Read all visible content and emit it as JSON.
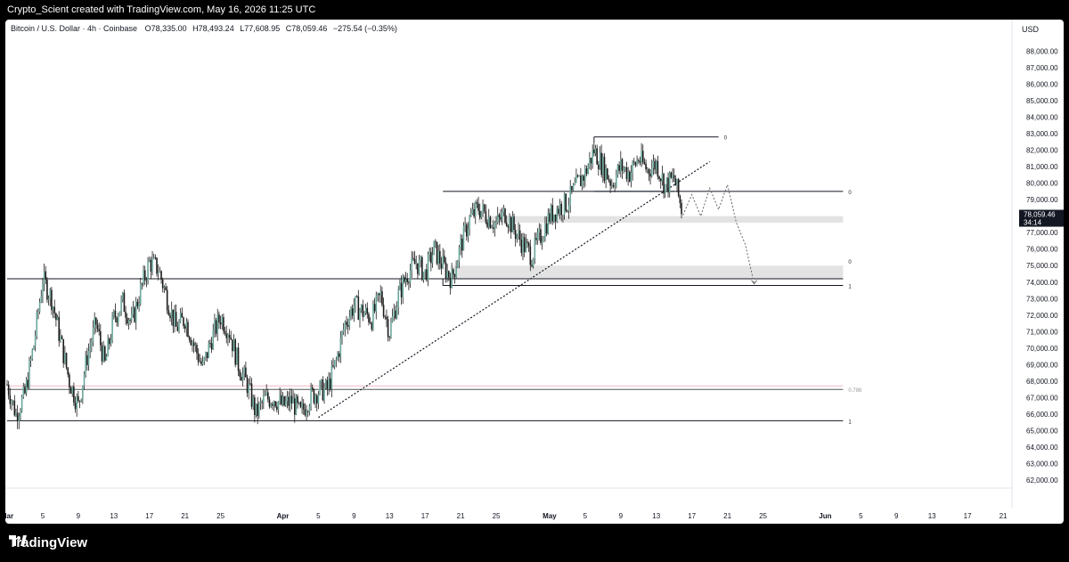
{
  "header": {
    "credit": "Crypto_Scient created with TradingView.com, May 16, 2026 11:25 UTC"
  },
  "legend": {
    "symbol": "Bitcoin / U.S. Dollar · 4h · Coinbase",
    "open_label": "O",
    "open": "78,335.00",
    "high_label": "H",
    "high": "78,493.24",
    "low_label": "L",
    "low": "77,608.95",
    "close_label": "C",
    "close": "78,059.46",
    "change": "−275.54 (−0.35%)"
  },
  "currency": "USD",
  "price_tag": {
    "price": "78,059.46",
    "countdown": "34:14"
  },
  "footer": {
    "brand": "TradingView"
  },
  "chart_data": {
    "type": "candlestick",
    "timeframe": "4h",
    "y_axis": {
      "range": [
        61000,
        89000
      ],
      "ticks": [
        "62,000.00",
        "63,000.00",
        "64,000.00",
        "65,000.00",
        "66,000.00",
        "67,000.00",
        "68,000.00",
        "69,000.00",
        "70,000.00",
        "71,000.00",
        "72,000.00",
        "73,000.00",
        "74,000.00",
        "75,000.00",
        "76,000.00",
        "77,000.00",
        "78,000.00",
        "79,000.00",
        "80,000.00",
        "81,000.00",
        "82,000.00",
        "83,000.00",
        "84,000.00",
        "85,000.00",
        "86,000.00",
        "87,000.00",
        "88,000.00"
      ],
      "tick_values": [
        62000,
        63000,
        64000,
        65000,
        66000,
        67000,
        68000,
        69000,
        70000,
        71000,
        72000,
        73000,
        74000,
        75000,
        76000,
        77000,
        78000,
        79000,
        80000,
        81000,
        82000,
        83000,
        84000,
        85000,
        86000,
        87000,
        88000
      ]
    },
    "x_axis": {
      "labels": [
        "Mar",
        "5",
        "9",
        "13",
        "17",
        "21",
        "25",
        "Apr",
        "5",
        "9",
        "13",
        "17",
        "21",
        "25",
        "May",
        "5",
        "9",
        "13",
        "17",
        "21",
        "25",
        "Jun",
        "5",
        "9",
        "13",
        "17",
        "21"
      ],
      "dates": [
        "2026-03-01",
        "2026-03-05",
        "2026-03-09",
        "2026-03-13",
        "2026-03-17",
        "2026-03-21",
        "2026-03-25",
        "2026-04-01",
        "2026-04-05",
        "2026-04-09",
        "2026-04-13",
        "2026-04-17",
        "2026-04-21",
        "2026-04-25",
        "2026-05-01",
        "2026-05-05",
        "2026-05-09",
        "2026-05-13",
        "2026-05-17",
        "2026-05-21",
        "2026-05-25",
        "2026-06-01",
        "2026-06-05",
        "2026-06-09",
        "2026-06-13",
        "2026-06-17",
        "2026-06-21"
      ],
      "range": [
        "2026-03-01",
        "2026-06-24"
      ]
    },
    "price_path": [
      [
        "2026-03-01",
        67800
      ],
      [
        "2026-03-02",
        66000
      ],
      [
        "2026-03-03",
        67200
      ],
      [
        "2026-03-04",
        70200
      ],
      [
        "2026-03-05",
        74200
      ],
      [
        "2026-03-06",
        73000
      ],
      [
        "2026-03-07",
        70500
      ],
      [
        "2026-03-08",
        68000
      ],
      [
        "2026-03-09",
        66500
      ],
      [
        "2026-03-10",
        69500
      ],
      [
        "2026-03-11",
        71500
      ],
      [
        "2026-03-12",
        69000
      ],
      [
        "2026-03-13",
        71800
      ],
      [
        "2026-03-14",
        72800
      ],
      [
        "2026-03-15",
        71500
      ],
      [
        "2026-03-16",
        73500
      ],
      [
        "2026-03-17",
        75200
      ],
      [
        "2026-03-18",
        74800
      ],
      [
        "2026-03-19",
        73000
      ],
      [
        "2026-03-20",
        71200
      ],
      [
        "2026-03-21",
        71800
      ],
      [
        "2026-03-22",
        70200
      ],
      [
        "2026-03-23",
        68800
      ],
      [
        "2026-03-24",
        70600
      ],
      [
        "2026-03-25",
        71900
      ],
      [
        "2026-03-26",
        71000
      ],
      [
        "2026-03-27",
        69000
      ],
      [
        "2026-03-28",
        67800
      ],
      [
        "2026-03-29",
        66000
      ],
      [
        "2026-03-30",
        66900
      ],
      [
        "2026-03-31",
        67000
      ],
      [
        "2026-04-01",
        66500
      ],
      [
        "2026-04-02",
        66800
      ],
      [
        "2026-04-03",
        66000
      ],
      [
        "2026-04-04",
        67000
      ],
      [
        "2026-04-05",
        67400
      ],
      [
        "2026-04-06",
        67500
      ],
      [
        "2026-04-07",
        69200
      ],
      [
        "2026-04-08",
        71500
      ],
      [
        "2026-04-09",
        72600
      ],
      [
        "2026-04-10",
        72200
      ],
      [
        "2026-04-11",
        71800
      ],
      [
        "2026-04-12",
        73200
      ],
      [
        "2026-04-13",
        71000
      ],
      [
        "2026-04-14",
        73200
      ],
      [
        "2026-04-15",
        74500
      ],
      [
        "2026-04-16",
        75200
      ],
      [
        "2026-04-17",
        74500
      ],
      [
        "2026-04-18",
        76000
      ],
      [
        "2026-04-19",
        75000
      ],
      [
        "2026-04-20",
        74200
      ],
      [
        "2026-04-21",
        76200
      ],
      [
        "2026-04-22",
        77800
      ],
      [
        "2026-04-23",
        78500
      ],
      [
        "2026-04-24",
        78000
      ],
      [
        "2026-04-25",
        77500
      ],
      [
        "2026-04-26",
        78200
      ],
      [
        "2026-04-27",
        77200
      ],
      [
        "2026-04-28",
        76300
      ],
      [
        "2026-04-29",
        75600
      ],
      [
        "2026-04-30",
        76800
      ],
      [
        "2026-05-01",
        78000
      ],
      [
        "2026-05-02",
        78500
      ],
      [
        "2026-05-03",
        78800
      ],
      [
        "2026-05-04",
        79800
      ],
      [
        "2026-05-05",
        80600
      ],
      [
        "2026-05-06",
        82000
      ],
      [
        "2026-05-07",
        81000
      ],
      [
        "2026-05-08",
        80000
      ],
      [
        "2026-05-09",
        81000
      ],
      [
        "2026-05-10",
        80600
      ],
      [
        "2026-05-11",
        81500
      ],
      [
        "2026-05-12",
        80800
      ],
      [
        "2026-05-13",
        81200
      ],
      [
        "2026-05-14",
        79800
      ],
      [
        "2026-05-15",
        80300
      ],
      [
        "2026-05-16",
        78060
      ]
    ],
    "projection": [
      [
        "2026-05-16",
        78060
      ],
      [
        "2026-05-17",
        79300
      ],
      [
        "2026-05-18",
        78000
      ],
      [
        "2026-05-19",
        79700
      ],
      [
        "2026-05-20",
        78400
      ],
      [
        "2026-05-21",
        79900
      ],
      [
        "2026-05-22",
        77600
      ],
      [
        "2026-05-23",
        76300
      ],
      [
        "2026-05-24",
        73900
      ]
    ],
    "levels": [
      {
        "name": "range-high",
        "price": 74200,
        "from": "2026-03-01",
        "to": "2026-06-03"
      },
      {
        "name": "range-low",
        "price": 65600,
        "from": "2026-03-01",
        "to": "2026-06-03",
        "label": "1"
      },
      {
        "name": "fib-0.786",
        "price": 67500,
        "from": "2026-03-01",
        "to": "2026-06-03",
        "label": "0.786"
      },
      {
        "name": "resistance",
        "price": 79500,
        "from": "2026-04-19",
        "to": "2026-06-03",
        "label": "0"
      },
      {
        "name": "support",
        "price": 73800,
        "from": "2026-04-19",
        "to": "2026-06-03",
        "label": "1"
      },
      {
        "name": "top",
        "price": 82800,
        "from": "2026-05-06",
        "to": "2026-05-20",
        "label": "0"
      },
      {
        "name": "mid-box-line",
        "price": 79500,
        "from": "2026-05-06",
        "to": "2026-05-15"
      }
    ],
    "zones": [
      {
        "name": "upper-zone",
        "from_price": 77600,
        "to_price": 78000,
        "from": "2026-04-23",
        "to": "2026-06-03"
      },
      {
        "name": "lower-zone",
        "from_price": 74200,
        "to_price": 75000,
        "from": "2026-04-20",
        "to": "2026-06-03",
        "label": "0"
      }
    ],
    "trendline": {
      "from": [
        "2026-04-05",
        65800
      ],
      "to": [
        "2026-05-19",
        81300
      ]
    },
    "last_price": 78059.46
  }
}
